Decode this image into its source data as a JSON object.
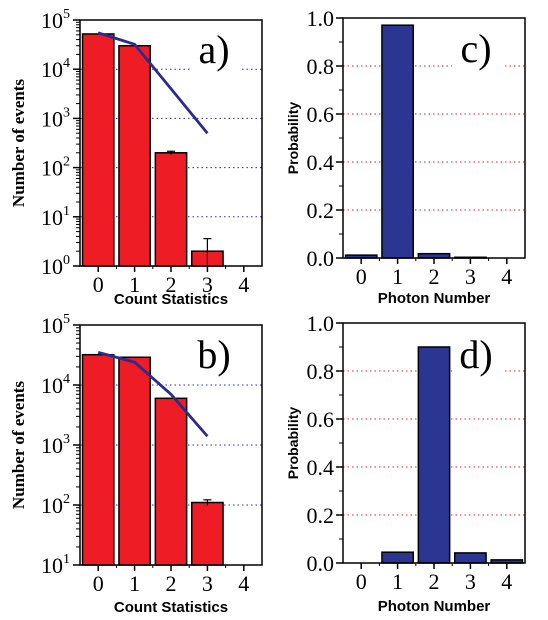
{
  "chart_data": [
    {
      "panel": "a)",
      "type": "bar",
      "scale": "log",
      "categories": [
        "0",
        "1",
        "2",
        "3",
        "4"
      ],
      "values": [
        52000,
        30000,
        200,
        2,
        0
      ],
      "errors": [
        0,
        0,
        15,
        1.6,
        0
      ],
      "line": [
        55000,
        32000,
        4000,
        500
      ],
      "xlabel": "Count Statistics",
      "ylabel": "Number of events",
      "ylim": [
        1,
        100000
      ],
      "yticks": [
        {
          "base": "10",
          "exp": "0"
        },
        {
          "base": "10",
          "exp": "1"
        },
        {
          "base": "10",
          "exp": "2"
        },
        {
          "base": "10",
          "exp": "3"
        },
        {
          "base": "10",
          "exp": "4"
        },
        {
          "base": "10",
          "exp": "5"
        }
      ],
      "bar_color": "#ee1c25",
      "line_color": "#2b2b8e",
      "grid": "dotted-blue"
    },
    {
      "panel": "b)",
      "type": "bar",
      "scale": "log",
      "categories": [
        "0",
        "1",
        "2",
        "3",
        "4"
      ],
      "values": [
        32000,
        29000,
        6000,
        110,
        0
      ],
      "errors": [
        0,
        0,
        0,
        12,
        0
      ],
      "line": [
        35000,
        24000,
        7000,
        1400
      ],
      "xlabel": "Count Statistics",
      "ylabel": "Number of events",
      "ylim": [
        10,
        100000
      ],
      "yticks": [
        {
          "base": "10",
          "exp": "1"
        },
        {
          "base": "10",
          "exp": "2"
        },
        {
          "base": "10",
          "exp": "3"
        },
        {
          "base": "10",
          "exp": "4"
        },
        {
          "base": "10",
          "exp": "5"
        }
      ],
      "bar_color": "#ee1c25",
      "line_color": "#2b2b8e",
      "grid": "dotted-blue"
    },
    {
      "panel": "c)",
      "type": "bar",
      "scale": "linear",
      "categories": [
        "0",
        "1",
        "2",
        "3",
        "4"
      ],
      "values": [
        0.012,
        0.97,
        0.018,
        0.003,
        0.0
      ],
      "xlabel": "Photon Number",
      "ylabel": "Probability",
      "ylim": [
        0,
        1.0
      ],
      "yticks": [
        "0.0",
        "0.2",
        "0.4",
        "0.6",
        "0.8",
        "1.0"
      ],
      "bar_color": "#2b3592",
      "grid": "dotted-red"
    },
    {
      "panel": "d)",
      "type": "bar",
      "scale": "linear",
      "categories": [
        "0",
        "1",
        "2",
        "3",
        "4"
      ],
      "values": [
        0.0,
        0.045,
        0.9,
        0.042,
        0.013
      ],
      "xlabel": "Photon Number",
      "ylabel": "Probability",
      "ylim": [
        0,
        1.0
      ],
      "yticks": [
        "0.0",
        "0.2",
        "0.4",
        "0.6",
        "0.8",
        "1.0"
      ],
      "bar_color": "#2b3592",
      "grid": "dotted-red"
    }
  ]
}
